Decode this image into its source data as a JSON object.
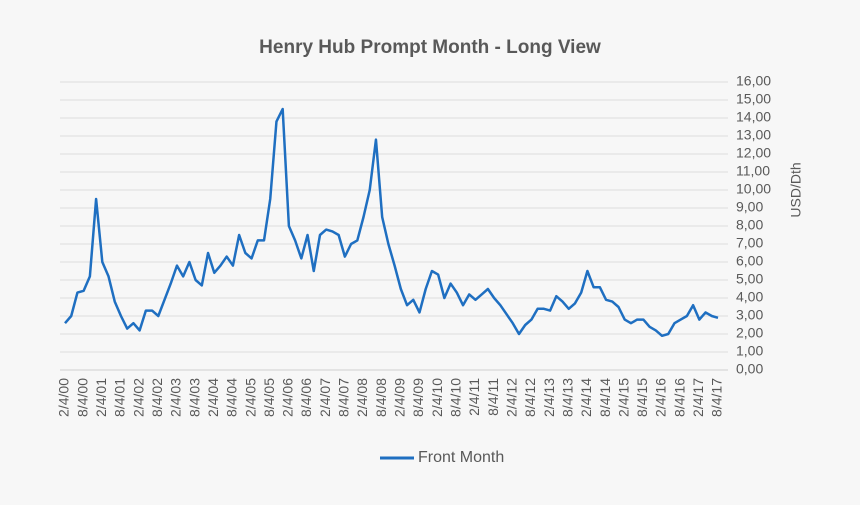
{
  "chart_data": {
    "type": "line",
    "title": "Henry Hub Prompt Month - Long View",
    "y_axis_label": "USD/Dth",
    "categories": [
      "2/4/00",
      null,
      null,
      "8/4/00",
      null,
      null,
      "2/4/01",
      null,
      null,
      "8/4/01",
      null,
      null,
      "2/4/02",
      null,
      null,
      "8/4/02",
      null,
      null,
      "2/4/03",
      null,
      null,
      "8/4/03",
      null,
      null,
      "2/4/04",
      null,
      null,
      "8/4/04",
      null,
      null,
      "2/4/05",
      null,
      null,
      "8/4/05",
      null,
      null,
      "2/4/06",
      null,
      null,
      "8/4/06",
      null,
      null,
      "2/4/07",
      null,
      null,
      "8/4/07",
      null,
      null,
      "2/4/08",
      null,
      null,
      "8/4/08",
      null,
      null,
      "2/4/09",
      null,
      null,
      "8/4/09",
      null,
      null,
      "2/4/10",
      null,
      null,
      "8/4/10",
      null,
      null,
      "2/4/11",
      null,
      null,
      "8/4/11",
      null,
      null,
      "2/4/12",
      null,
      null,
      "8/4/12",
      null,
      null,
      "2/4/13",
      null,
      null,
      "8/4/13",
      null,
      null,
      "2/4/14",
      null,
      null,
      "8/4/14",
      null,
      null,
      "2/4/15",
      null,
      null,
      "8/4/15",
      null,
      null,
      "2/4/16",
      null,
      null,
      "8/4/16",
      null,
      null,
      "2/4/17",
      null,
      null,
      "8/4/17"
    ],
    "series": [
      {
        "name": "Front Month",
        "color": "#1f6fc1",
        "values": [
          2.6,
          3.0,
          4.3,
          4.4,
          5.2,
          9.5,
          6.0,
          5.2,
          3.8,
          3.0,
          2.3,
          2.6,
          2.2,
          3.3,
          3.3,
          3.0,
          3.9,
          4.8,
          5.8,
          5.2,
          6.0,
          5.0,
          4.7,
          6.5,
          5.4,
          5.8,
          6.3,
          5.8,
          7.5,
          6.5,
          6.2,
          7.2,
          7.2,
          9.5,
          13.8,
          14.5,
          8.0,
          7.2,
          6.2,
          7.5,
          5.5,
          7.5,
          7.8,
          7.7,
          7.5,
          6.3,
          7.0,
          7.2,
          8.5,
          10.0,
          12.8,
          8.5,
          7.0,
          5.8,
          4.5,
          3.6,
          3.9,
          3.2,
          4.5,
          5.5,
          5.3,
          4.0,
          4.8,
          4.3,
          3.6,
          4.2,
          3.9,
          4.2,
          4.5,
          4.0,
          3.6,
          3.1,
          2.6,
          2.0,
          2.5,
          2.8,
          3.4,
          3.4,
          3.3,
          4.1,
          3.8,
          3.4,
          3.7,
          4.3,
          5.5,
          4.6,
          4.6,
          3.9,
          3.8,
          3.5,
          2.8,
          2.6,
          2.8,
          2.8,
          2.4,
          2.2,
          1.9,
          2.0,
          2.6,
          2.8,
          3.0,
          3.6,
          2.8,
          3.2,
          3.0,
          2.9
        ]
      }
    ],
    "ylim": [
      0,
      16
    ],
    "yticks": [
      {
        "value": 0,
        "label": "0,00"
      },
      {
        "value": 1,
        "label": "1,00"
      },
      {
        "value": 2,
        "label": "2,00"
      },
      {
        "value": 3,
        "label": "3,00"
      },
      {
        "value": 4,
        "label": "4,00"
      },
      {
        "value": 5,
        "label": "5,00"
      },
      {
        "value": 6,
        "label": "6,00"
      },
      {
        "value": 7,
        "label": "7,00"
      },
      {
        "value": 8,
        "label": "8,00"
      },
      {
        "value": 9,
        "label": "9,00"
      },
      {
        "value": 10,
        "label": "10,00"
      },
      {
        "value": 11,
        "label": "11,00"
      },
      {
        "value": 12,
        "label": "12,00"
      },
      {
        "value": 13,
        "label": "13,00"
      },
      {
        "value": 14,
        "label": "14,00"
      },
      {
        "value": 15,
        "label": "15,00"
      },
      {
        "value": 16,
        "label": "16,00"
      }
    ],
    "grid": true,
    "legend": "bottom"
  }
}
